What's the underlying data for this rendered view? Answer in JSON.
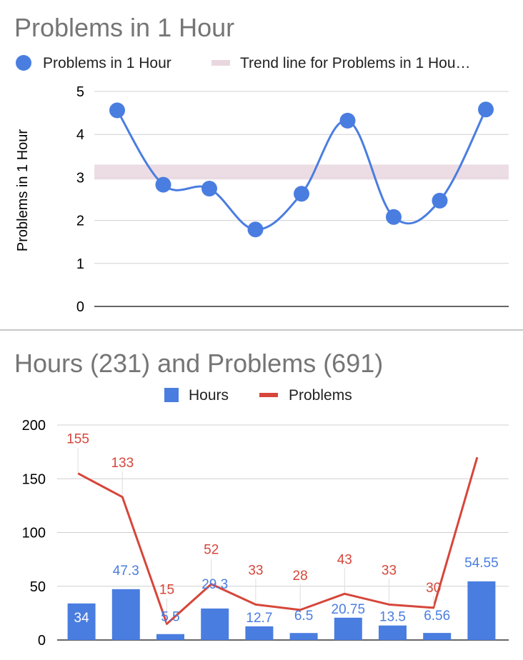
{
  "chart_data": [
    {
      "type": "line",
      "title": "Problems in 1 Hour",
      "ylabel": "Problems in 1 Hour",
      "xlabel": "",
      "ylim": [
        0,
        5
      ],
      "yticks": [
        0,
        1,
        2,
        3,
        4,
        5
      ],
      "grid": true,
      "legend_position": "top",
      "series": [
        {
          "name": "Problems in 1 Hour",
          "values": [
            4.56,
            2.83,
            2.74,
            1.79,
            2.62,
            4.32,
            2.08,
            2.46,
            4.58
          ],
          "color": "#4a7de0"
        }
      ],
      "trendline": {
        "name": "Trend line for Problems in 1 Hou…",
        "value": 3.1,
        "color": "#e9d7df"
      }
    },
    {
      "type": "bar",
      "title": "Hours (231) and Problems (691)",
      "xlabel": "",
      "ylabel": "",
      "ylim": [
        0,
        200
      ],
      "yticks": [
        0,
        50,
        100,
        150,
        200
      ],
      "grid": true,
      "legend_position": "top",
      "series": [
        {
          "name": "Hours",
          "kind": "bar",
          "color": "#4a7de0",
          "values": [
            34,
            47.3,
            5.5,
            29.3,
            12.7,
            6.5,
            20.75,
            13.5,
            6.56,
            54.55
          ],
          "labels": [
            "34",
            "47.3",
            "5.5",
            "29.3",
            "12.7",
            "6.5",
            "20.75",
            "13.5",
            "6.56",
            "54.55"
          ]
        },
        {
          "name": "Problems",
          "kind": "line",
          "color": "#d6463a",
          "values": [
            155,
            133,
            15,
            52,
            33,
            28,
            43,
            33,
            30,
            170
          ],
          "labels": [
            "155",
            "133",
            "15",
            "52",
            "33",
            "28",
            "43",
            "33",
            "30",
            ""
          ]
        }
      ]
    }
  ]
}
